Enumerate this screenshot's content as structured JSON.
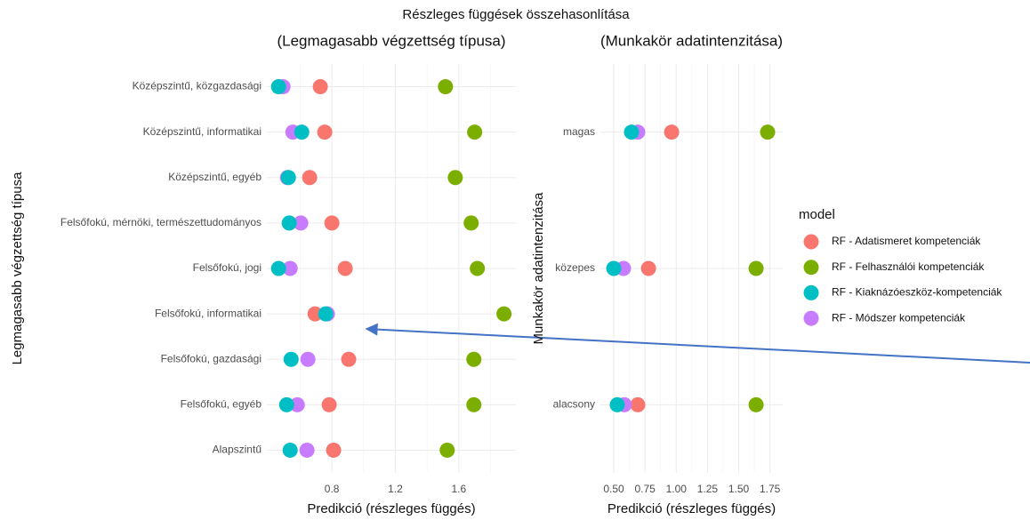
{
  "title": "Részleges függések összehasonlítása",
  "legend_title": "model",
  "chart_data": [
    {
      "type": "dot",
      "title": "(Legmagasabb végzettség típusa)",
      "x_label": "Predikció (részleges függés)",
      "y_label": "Legmagasabb végzettség típusa",
      "categories": [
        "Középszintű, közgazdasági",
        "Középszintű, informatikai",
        "Középszintű, egyéb",
        "Felsőfokú, mérnöki, természettudományos",
        "Felsőfokú, jogi",
        "Felsőfokú, informatikai",
        "Felsőfokú, gazdasági",
        "Felsőfokú, egyéb",
        "Alapszintű"
      ],
      "xlim": [
        0.39,
        1.96
      ],
      "xticks": [
        0.8,
        1.2,
        1.6
      ],
      "grid": true,
      "series": [
        {
          "name": "RF - Adatismeret kompetenciák",
          "color": "#F8766D",
          "values": [
            0.727,
            0.755,
            0.66,
            0.8,
            0.884,
            0.694,
            0.906,
            0.783,
            0.811
          ]
        },
        {
          "name": "RF - Felhasználói kompetenciák",
          "color": "#7CAE00",
          "values": [
            1.516,
            1.7,
            1.578,
            1.678,
            1.717,
            1.885,
            1.695,
            1.695,
            1.527
          ]
        },
        {
          "name": "RF - Kiaknázóeszköz-kompetenciák",
          "color": "#00BFC4",
          "values": [
            0.464,
            0.61,
            0.526,
            0.531,
            0.464,
            0.761,
            0.543,
            0.515,
            0.537
          ]
        },
        {
          "name": "RF - Módszer kompetenciák",
          "color": "#C77CFF",
          "values": [
            0.492,
            0.554,
            0.52,
            0.604,
            0.537,
            0.772,
            0.649,
            0.582,
            0.643
          ]
        }
      ]
    },
    {
      "type": "dot",
      "title": "(Munkakör adatintenzitása)",
      "x_label": "Predikció (részleges függés)",
      "y_label": "Munkakör adatintenzitása",
      "categories": [
        "magas",
        "közepes",
        "alacsony"
      ],
      "xlim": [
        0.393,
        1.852
      ],
      "xticks": [
        {
          "value": 0.5,
          "label": "0.50"
        },
        0.75,
        {
          "value": 1.0,
          "label": "1.00"
        },
        1.25,
        {
          "value": 1.5,
          "label": "1.50"
        },
        1.75
      ],
      "grid": true,
      "series": [
        {
          "name": "RF - Adatismeret kompetenciák",
          "color": "#F8766D",
          "values": [
            0.963,
            0.778,
            0.692
          ]
        },
        {
          "name": "RF - Felhasználói kompetenciák",
          "color": "#7CAE00",
          "values": [
            1.731,
            1.639,
            1.639
          ]
        },
        {
          "name": "RF - Kiaknázóeszköz-kompetenciák",
          "color": "#00BFC4",
          "values": [
            0.642,
            0.5,
            0.528
          ]
        },
        {
          "name": "RF - Módszer kompetenciák",
          "color": "#C77CFF",
          "values": [
            0.692,
            0.578,
            0.585
          ]
        }
      ]
    }
  ]
}
